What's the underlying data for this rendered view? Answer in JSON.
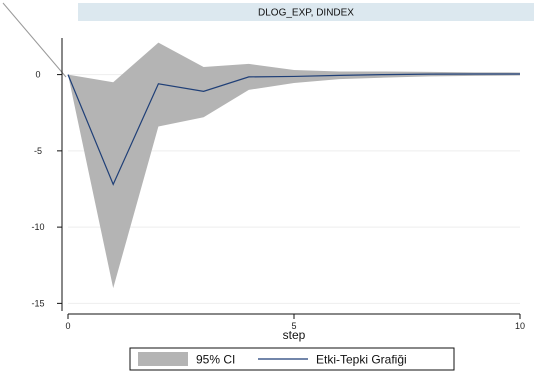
{
  "chart_data": {
    "type": "area",
    "panel_title": "DLOG_EXP, DINDEX",
    "xlabel": "step",
    "ylabel": "",
    "xlim": [
      0,
      10
    ],
    "ylim": [
      -15.5,
      2.4
    ],
    "x_ticks": [
      0,
      5,
      10
    ],
    "y_ticks": [
      0,
      -5,
      -10,
      -15
    ],
    "x": [
      0,
      1,
      2,
      3,
      4,
      5,
      6,
      7,
      8,
      9,
      10
    ],
    "series": [
      {
        "name": "Etki-Tepki Grafiği",
        "kind": "line",
        "color": "#1f3f77",
        "values": [
          0,
          -7.2,
          -0.6,
          -1.1,
          -0.15,
          -0.12,
          -0.05,
          0.0,
          0.03,
          0.04,
          0.04
        ]
      },
      {
        "name": "95% CI",
        "kind": "band",
        "color": "#b4b4b4",
        "lower": [
          0,
          -14.0,
          -3.4,
          -2.8,
          -1.0,
          -0.55,
          -0.3,
          -0.2,
          -0.12,
          -0.08,
          -0.06
        ],
        "upper": [
          0,
          -0.5,
          2.1,
          0.5,
          0.7,
          0.3,
          0.2,
          0.2,
          0.18,
          0.15,
          0.14
        ]
      }
    ],
    "legend": {
      "position": "bottom",
      "entries": [
        "95% CI",
        "Etki-Tepki Grafiği"
      ]
    },
    "grid": "horizontal"
  }
}
